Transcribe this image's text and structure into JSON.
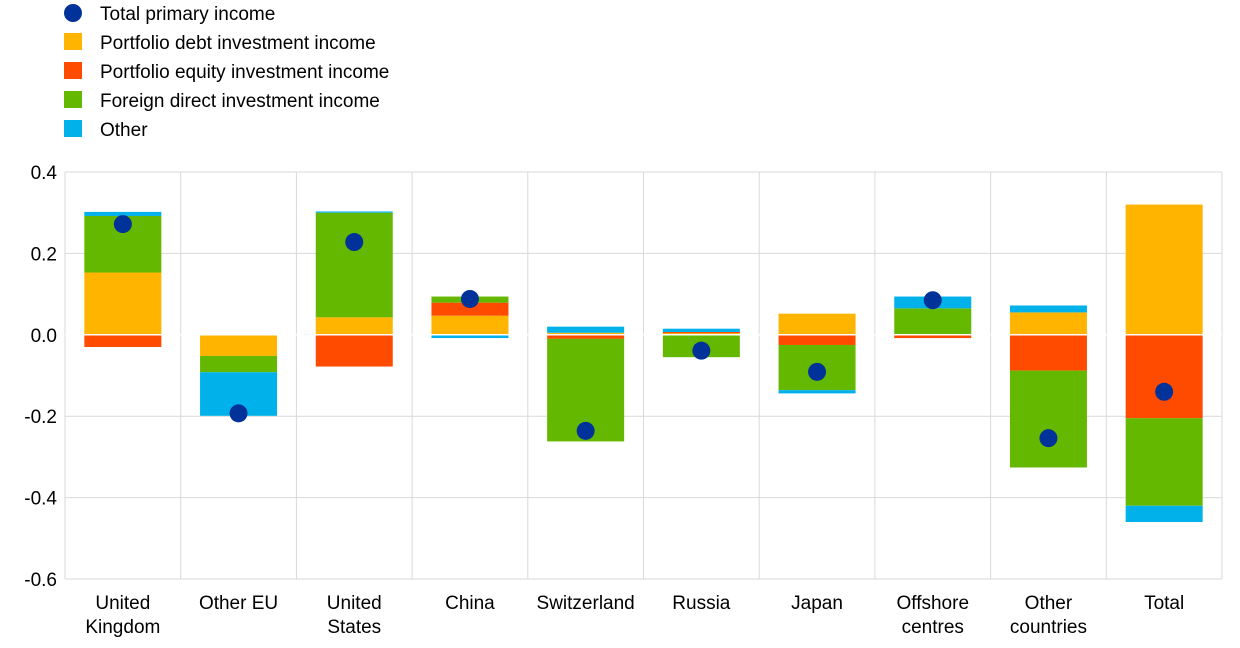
{
  "chart_data": {
    "type": "bar",
    "stacked": true,
    "title": "",
    "xlabel": "",
    "ylabel": "",
    "ylim": [
      -0.6,
      0.4
    ],
    "yticks": [
      0.4,
      0.2,
      0.0,
      -0.2,
      -0.4,
      -0.6
    ],
    "ytick_labels": [
      "0.4",
      "0.2",
      "0.0",
      "-0.2",
      "-0.4",
      "-0.6"
    ],
    "grid": true,
    "legend_position": "top-left",
    "categories": [
      [
        "United",
        "Kingdom"
      ],
      [
        "Other EU"
      ],
      [
        "United",
        "States"
      ],
      [
        "China"
      ],
      [
        "Switzerland"
      ],
      [
        "Russia"
      ],
      [
        "Japan"
      ],
      [
        "Offshore",
        "centres"
      ],
      [
        "Other",
        "countries"
      ],
      [
        "Total"
      ]
    ],
    "series": [
      {
        "name": "Portfolio debt investment income",
        "color": "#FFB400",
        "values": [
          0.153,
          -0.052,
          0.043,
          0.047,
          0.005,
          0.004,
          0.052,
          0.002,
          0.055,
          0.32
        ]
      },
      {
        "name": "Portfolio equity investment income",
        "color": "#FF4B00",
        "values": [
          -0.03,
          0.0,
          -0.078,
          0.032,
          -0.01,
          0.003,
          -0.025,
          -0.008,
          -0.088,
          -0.205
        ]
      },
      {
        "name": "Foreign direct investment income",
        "color": "#65B800",
        "values": [
          0.139,
          -0.04,
          0.257,
          0.015,
          -0.252,
          -0.055,
          -0.111,
          0.063,
          -0.238,
          -0.215
        ]
      },
      {
        "name": "Other",
        "color": "#00B1EA",
        "values": [
          0.01,
          -0.107,
          0.003,
          -0.008,
          0.015,
          0.008,
          -0.008,
          0.029,
          0.017,
          -0.04
        ]
      }
    ],
    "points": {
      "name": "Total primary income",
      "color": "#003299",
      "values": [
        0.272,
        -0.193,
        0.228,
        0.088,
        -0.236,
        -0.039,
        -0.091,
        0.085,
        -0.254,
        -0.14
      ]
    }
  }
}
